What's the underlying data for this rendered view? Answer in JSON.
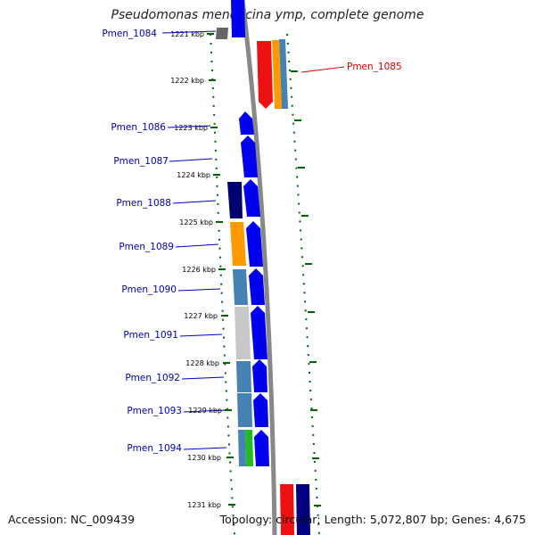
{
  "title": "Pseudomonas mendocina ymp, complete genome",
  "accession": "Accession: NC_009439",
  "topology": "Topology: circular; Length: 5,072,807 bp; Genes: 4,675",
  "colors": {
    "forward": "#0000ee",
    "red": "#ee1111",
    "orange": "#ff9900",
    "steel": "#4682b4",
    "navy": "#000070",
    "gray": "#777777",
    "light_gray": "#c8c8c8",
    "green": "#22bb22",
    "tick": "#006600",
    "label_blue": "#0000bb",
    "label_red": "#dd0000",
    "backbone": "#888888"
  },
  "ticks": [
    "1221 kbp",
    "1222 kbp",
    "1223 kbp",
    "1224 kbp",
    "1225 kbp",
    "1226 kbp",
    "1227 kbp",
    "1228 kbp",
    "1229 kbp",
    "1230 kbp",
    "1231 kbp"
  ],
  "gene_labels": [
    "Pmen_1084",
    "Pmen_1085",
    "Pmen_1086",
    "Pmen_1087",
    "Pmen_1088",
    "Pmen_1089",
    "Pmen_1090",
    "Pmen_1091",
    "Pmen_1092",
    "Pmen_1093",
    "Pmen_1094"
  ]
}
